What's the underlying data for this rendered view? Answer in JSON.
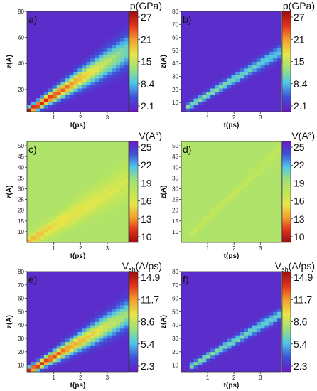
{
  "chart_data": [
    {
      "id": "a",
      "type": "heatmap",
      "panel_label": "a)",
      "xlabel": "t(ps)",
      "ylabel": "z(A)",
      "xticks": [
        "1",
        "2",
        "3"
      ],
      "yticks": [
        "20",
        "40",
        "60",
        "80"
      ],
      "xlim": [
        0,
        3.8
      ],
      "ylim": [
        3,
        80
      ],
      "colorbar": {
        "title": "p(GPa)",
        "ticks": [
          "27",
          "21",
          "15",
          "8.4",
          "2.1"
        ],
        "scheme": "pressure"
      },
      "background_fraction": 0.05,
      "front": {
        "z0": 3,
        "speed": 12.6,
        "t_start": 0.05,
        "t_end": 3.8,
        "width_start": 3,
        "width_end": 14,
        "peak_start": 1.0,
        "peak_end": 0.35
      }
    },
    {
      "id": "b",
      "type": "heatmap",
      "panel_label": "b)",
      "xlabel": "t(ps)",
      "ylabel": "z(A)",
      "xticks": [
        "1",
        "2",
        "3"
      ],
      "yticks": [
        "10",
        "20",
        "30",
        "40",
        "50",
        "60",
        "70",
        "80"
      ],
      "xlim": [
        0,
        3.8
      ],
      "ylim": [
        3,
        80
      ],
      "colorbar": {
        "title": "p(GPa)",
        "ticks": [
          "27",
          "21",
          "15",
          "8.4",
          "2.1"
        ],
        "scheme": "pressure"
      },
      "background_fraction": 0.05,
      "front": {
        "z0": 4,
        "speed": 12.0,
        "t_start": 0.2,
        "t_end": 3.8,
        "width_start": 3,
        "width_end": 6,
        "peak_start": 0.42,
        "peak_end": 0.3
      }
    },
    {
      "id": "c",
      "type": "heatmap",
      "panel_label": "c)",
      "xlabel": "t(ps)",
      "ylabel": "z(A)",
      "xticks": [
        "1",
        "2",
        "3"
      ],
      "yticks": [
        "10",
        "15",
        "20",
        "25",
        "30",
        "35",
        "40",
        "45",
        "50"
      ],
      "xlim": [
        0,
        3.8
      ],
      "ylim": [
        5,
        52
      ],
      "colorbar": {
        "title": "V(A³)",
        "ticks": [
          "25",
          "22",
          "19",
          "16",
          "13",
          "10"
        ],
        "scheme": "volume"
      },
      "background_fraction": 0.56,
      "front": {
        "z0": 5,
        "speed": 7.6,
        "t_start": 0.05,
        "t_end": 3.8,
        "width_start": 3,
        "width_end": 9,
        "peak_start": 0.3,
        "peak_end": 0.45
      }
    },
    {
      "id": "d",
      "type": "heatmap",
      "panel_label": "d)",
      "xlabel": "t(ps)",
      "ylabel": "z(A)",
      "xticks": [
        "1",
        "2",
        "3"
      ],
      "yticks": [
        "10",
        "15",
        "20",
        "25",
        "30",
        "35",
        "40",
        "45",
        "50"
      ],
      "xlim": [
        0,
        3.8
      ],
      "ylim": [
        5,
        52
      ],
      "colorbar": {
        "title": "V(A³)",
        "ticks": [
          "25",
          "22",
          "19",
          "16",
          "13",
          "10"
        ],
        "scheme": "volume"
      },
      "background_fraction": 0.56,
      "front": {
        "z0": 5,
        "speed": 11.5,
        "t_start": 0.3,
        "t_end": 3.8,
        "width_start": 2,
        "width_end": 4,
        "peak_start": 0.48,
        "peak_end": 0.5
      }
    },
    {
      "id": "e",
      "type": "heatmap",
      "panel_label": "e)",
      "xlabel": "t(ps)",
      "ylabel": "z(A)",
      "xticks": [
        "1",
        "2",
        "3"
      ],
      "yticks": [
        "10",
        "20",
        "30",
        "40",
        "50",
        "60",
        "70",
        "80"
      ],
      "xlim": [
        0,
        3.8
      ],
      "ylim": [
        5,
        80
      ],
      "colorbar": {
        "title": "V",
        "title_sub": "sh",
        "title_rest": "(A/ps)",
        "ticks": [
          "14.9",
          "11.7",
          "8.6",
          "5.4",
          "2.3"
        ],
        "scheme": "pressure"
      },
      "background_fraction": 0.05,
      "front": {
        "z0": 5,
        "speed": 11.5,
        "t_start": 0.05,
        "t_end": 3.8,
        "width_start": 3,
        "width_end": 12,
        "peak_start": 0.95,
        "peak_end": 0.42
      }
    },
    {
      "id": "f",
      "type": "heatmap",
      "panel_label": "f)",
      "xlabel": "t(ps)",
      "ylabel": "z(A)",
      "xticks": [
        "1",
        "2",
        "3"
      ],
      "yticks": [
        "10",
        "20",
        "30",
        "40",
        "50",
        "60",
        "70",
        "80"
      ],
      "xlim": [
        0,
        3.8
      ],
      "ylim": [
        5,
        80
      ],
      "colorbar": {
        "title": "V",
        "title_sub": "sh",
        "title_rest": "(A/ps)",
        "ticks": [
          "14.9",
          "11.7",
          "8.6",
          "5.4",
          "2.3"
        ],
        "scheme": "pressure"
      },
      "background_fraction": 0.05,
      "front": {
        "z0": 5,
        "speed": 11.5,
        "t_start": 0.35,
        "t_end": 3.8,
        "width_start": 3,
        "width_end": 5,
        "peak_start": 0.4,
        "peak_end": 0.33
      }
    }
  ],
  "colors": {
    "pressure_scale": [
      "#6a1bc4",
      "#3f50d8",
      "#4fc6e8",
      "#9ee07a",
      "#e6e64a",
      "#f2a12e",
      "#e2331c",
      "#9a0d0d"
    ],
    "volume_scale": [
      "#9a0d0d",
      "#e2331c",
      "#f2a12e",
      "#e6e64a",
      "#bfe65a",
      "#9ee07a",
      "#4fc6e8",
      "#3f50d8",
      "#6a1bc4"
    ]
  }
}
